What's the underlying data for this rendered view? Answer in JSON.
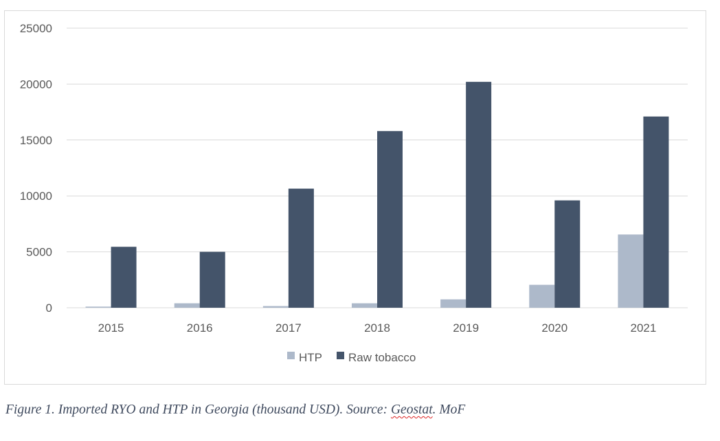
{
  "chart_data": {
    "type": "bar",
    "categories": [
      "2015",
      "2016",
      "2017",
      "2018",
      "2019",
      "2020",
      "2021"
    ],
    "series": [
      {
        "name": "HTP",
        "color": "#adb9ca",
        "values": [
          100,
          400,
          150,
          400,
          750,
          2050,
          6550
        ]
      },
      {
        "name": "Raw tobacco",
        "color": "#44546a",
        "values": [
          5450,
          5000,
          10650,
          15800,
          20200,
          9600,
          17100
        ]
      }
    ],
    "ylim": [
      0,
      25000
    ],
    "yticks": [
      "0",
      "5000",
      "10000",
      "15000",
      "20000",
      "25000"
    ],
    "grid": true,
    "legend_position": "bottom"
  },
  "caption": {
    "prefix": "Figure 1. Imported RYO and HTP in Georgia (thousand USD). Source: ",
    "source1": "Geostat",
    "suffix": ". MoF"
  }
}
